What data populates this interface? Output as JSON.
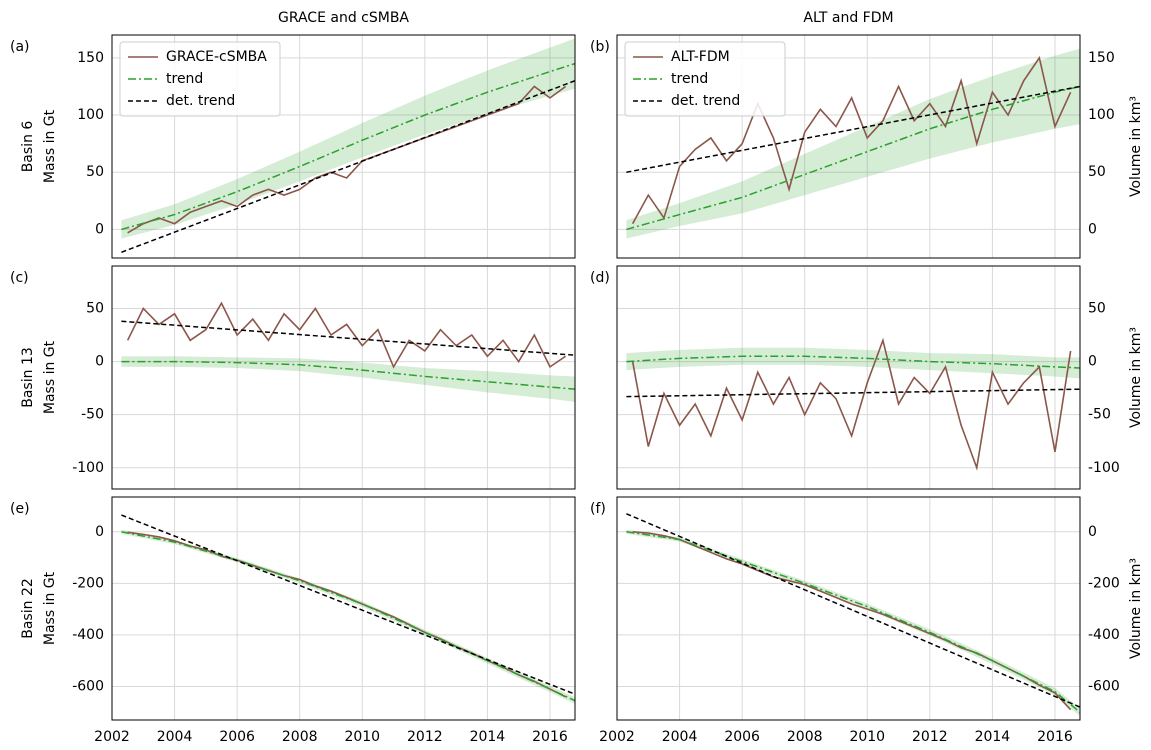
{
  "chart_data": [
    {
      "type": "line",
      "column_title": "GRACE and cSMBA",
      "panel_label": "(a)",
      "row_label": "Basin 6",
      "ylabel": "Mass in Gt",
      "xlim": [
        2002,
        2016.8
      ],
      "xticks": [
        2002,
        2004,
        2006,
        2008,
        2010,
        2012,
        2014,
        2016
      ],
      "ylim": [
        -25,
        170
      ],
      "yticks": [
        0,
        50,
        100,
        150
      ],
      "grid": true,
      "legend": "upper left",
      "series": [
        {
          "name": "GRACE-cSMBA",
          "color": "#8c564b",
          "style": "solid",
          "x": [
            2002.5,
            2003,
            2003.5,
            2004,
            2004.5,
            2005,
            2005.5,
            2006,
            2006.5,
            2007,
            2007.5,
            2008,
            2008.5,
            2009,
            2009.5,
            2010,
            2010.5,
            2011,
            2011.5,
            2012,
            2012.5,
            2013,
            2013.5,
            2014,
            2014.5,
            2015,
            2015.5,
            2016,
            2016.5
          ],
          "values": [
            -3,
            5,
            10,
            5,
            15,
            20,
            25,
            20,
            30,
            35,
            30,
            35,
            45,
            50,
            45,
            60,
            65,
            70,
            75,
            80,
            85,
            90,
            95,
            100,
            105,
            110,
            125,
            115,
            125
          ]
        },
        {
          "name": "trend",
          "color": "#2ca02c",
          "style": "dashdot",
          "x": [
            2002.3,
            2004,
            2006,
            2008,
            2010,
            2012,
            2014,
            2016,
            2016.8
          ],
          "values": [
            0,
            13,
            33,
            55,
            78,
            100,
            120,
            138,
            145
          ],
          "band_lower": [
            -8,
            4,
            22,
            42,
            63,
            83,
            101,
            117,
            123
          ],
          "band_upper": [
            8,
            22,
            44,
            68,
            93,
            117,
            139,
            159,
            167
          ]
        },
        {
          "name": "det. trend",
          "color": "#000000",
          "style": "dashed",
          "x": [
            2002.3,
            2016.8
          ],
          "values": [
            -20,
            130
          ]
        }
      ]
    },
    {
      "type": "line",
      "column_title": "ALT and FDM",
      "panel_label": "(b)",
      "ylabel": "Volume in km³",
      "xlim": [
        2002,
        2016.8
      ],
      "xticks": [
        2002,
        2004,
        2006,
        2008,
        2010,
        2012,
        2014,
        2016
      ],
      "ylim": [
        -25,
        170
      ],
      "yticks": [
        0,
        50,
        100,
        150
      ],
      "grid": true,
      "legend": "upper left",
      "series": [
        {
          "name": "ALT-FDM",
          "color": "#8c564b",
          "style": "solid",
          "x": [
            2002.5,
            2003,
            2003.5,
            2004,
            2004.5,
            2005,
            2005.5,
            2006,
            2006.5,
            2007,
            2007.5,
            2008,
            2008.5,
            2009,
            2009.5,
            2010,
            2010.5,
            2011,
            2011.5,
            2012,
            2012.5,
            2013,
            2013.5,
            2014,
            2014.5,
            2015,
            2015.5,
            2016,
            2016.5
          ],
          "values": [
            5,
            30,
            10,
            55,
            70,
            80,
            60,
            75,
            110,
            80,
            35,
            85,
            105,
            90,
            115,
            80,
            95,
            125,
            95,
            110,
            90,
            130,
            75,
            120,
            100,
            130,
            150,
            90,
            120
          ]
        },
        {
          "name": "trend",
          "color": "#2ca02c",
          "style": "dashdot",
          "x": [
            2002.3,
            2004,
            2006,
            2008,
            2010,
            2012,
            2014,
            2016,
            2016.8
          ],
          "values": [
            0,
            13,
            28,
            48,
            68,
            88,
            105,
            120,
            125
          ],
          "band_lower": [
            -8,
            3,
            14,
            30,
            46,
            62,
            76,
            88,
            92
          ],
          "band_upper": [
            8,
            23,
            42,
            66,
            90,
            114,
            134,
            152,
            158
          ]
        },
        {
          "name": "det. trend",
          "color": "#000000",
          "style": "dashed",
          "x": [
            2002.3,
            2016.8
          ],
          "values": [
            50,
            125
          ]
        }
      ]
    },
    {
      "type": "line",
      "panel_label": "(c)",
      "row_label": "Basin 13",
      "ylabel": "Mass in Gt",
      "xlim": [
        2002,
        2016.8
      ],
      "xticks": [
        2002,
        2004,
        2006,
        2008,
        2010,
        2012,
        2014,
        2016
      ],
      "ylim": [
        -120,
        90
      ],
      "yticks": [
        -100,
        -50,
        0,
        50
      ],
      "grid": true,
      "series": [
        {
          "color": "#8c564b",
          "style": "solid",
          "x": [
            2002.5,
            2003,
            2003.5,
            2004,
            2004.5,
            2005,
            2005.5,
            2006,
            2006.5,
            2007,
            2007.5,
            2008,
            2008.5,
            2009,
            2009.5,
            2010,
            2010.5,
            2011,
            2011.5,
            2012,
            2012.5,
            2013,
            2013.5,
            2014,
            2014.5,
            2015,
            2015.5,
            2016,
            2016.5
          ],
          "values": [
            20,
            50,
            35,
            45,
            20,
            30,
            55,
            25,
            40,
            20,
            45,
            30,
            50,
            25,
            35,
            15,
            30,
            -5,
            20,
            10,
            30,
            15,
            25,
            5,
            20,
            0,
            25,
            -5,
            5
          ]
        },
        {
          "color": "#2ca02c",
          "style": "dashdot",
          "x": [
            2002.3,
            2004,
            2006,
            2008,
            2010,
            2012,
            2014,
            2016,
            2016.8
          ],
          "values": [
            0,
            0,
            -1,
            -3,
            -8,
            -14,
            -19,
            -24,
            -26
          ],
          "band_lower": [
            -5,
            -5,
            -6,
            -9,
            -15,
            -22,
            -29,
            -35,
            -38
          ],
          "band_upper": [
            5,
            5,
            4,
            3,
            -1,
            -6,
            -9,
            -13,
            -14
          ]
        },
        {
          "color": "#000000",
          "style": "dashed",
          "x": [
            2002.3,
            2016.8
          ],
          "values": [
            38,
            6
          ]
        }
      ]
    },
    {
      "type": "line",
      "panel_label": "(d)",
      "ylabel": "Volume in km³",
      "xlim": [
        2002,
        2016.8
      ],
      "xticks": [
        2002,
        2004,
        2006,
        2008,
        2010,
        2012,
        2014,
        2016
      ],
      "ylim": [
        -120,
        90
      ],
      "yticks": [
        -100,
        -50,
        0,
        50
      ],
      "grid": true,
      "series": [
        {
          "color": "#8c564b",
          "style": "solid",
          "x": [
            2002.5,
            2003,
            2003.5,
            2004,
            2004.5,
            2005,
            2005.5,
            2006,
            2006.5,
            2007,
            2007.5,
            2008,
            2008.5,
            2009,
            2009.5,
            2010,
            2010.5,
            2011,
            2011.5,
            2012,
            2012.5,
            2013,
            2013.5,
            2014,
            2014.5,
            2015,
            2015.5,
            2016,
            2016.5
          ],
          "values": [
            0,
            -80,
            -30,
            -60,
            -40,
            -70,
            -25,
            -55,
            -10,
            -40,
            -15,
            -50,
            -20,
            -35,
            -70,
            -20,
            20,
            -40,
            -15,
            -30,
            -5,
            -60,
            -100,
            -10,
            -40,
            -20,
            -5,
            -85,
            10
          ]
        },
        {
          "color": "#2ca02c",
          "style": "dashdot",
          "x": [
            2002.3,
            2004,
            2006,
            2008,
            2010,
            2012,
            2014,
            2016,
            2016.8
          ],
          "values": [
            0,
            3,
            5,
            5,
            3,
            0,
            -2,
            -5,
            -6
          ],
          "band_lower": [
            -8,
            -5,
            -3,
            -3,
            -5,
            -8,
            -11,
            -14,
            -16
          ],
          "band_upper": [
            8,
            11,
            13,
            13,
            11,
            8,
            7,
            4,
            4
          ]
        },
        {
          "color": "#000000",
          "style": "dashed",
          "x": [
            2002.3,
            2016.8
          ],
          "values": [
            -33,
            -26
          ]
        }
      ]
    },
    {
      "type": "line",
      "panel_label": "(e)",
      "row_label": "Basin 22",
      "ylabel": "Mass in Gt",
      "xlim": [
        2002,
        2016.8
      ],
      "xticks": [
        2002,
        2004,
        2006,
        2008,
        2010,
        2012,
        2014,
        2016
      ],
      "ylim": [
        -730,
        135
      ],
      "yticks": [
        -600,
        -400,
        -200,
        0
      ],
      "grid": true,
      "series": [
        {
          "color": "#8c564b",
          "style": "solid",
          "x": [
            2002.5,
            2003,
            2003.5,
            2004,
            2004.5,
            2005,
            2005.5,
            2006,
            2006.5,
            2007,
            2007.5,
            2008,
            2008.5,
            2009,
            2009.5,
            2010,
            2010.5,
            2011,
            2011.5,
            2012,
            2012.5,
            2013,
            2013.5,
            2014,
            2014.5,
            2015,
            2015.5,
            2016,
            2016.5
          ],
          "values": [
            -2,
            -10,
            -20,
            -35,
            -55,
            -70,
            -95,
            -110,
            -130,
            -150,
            -170,
            -185,
            -210,
            -230,
            -255,
            -280,
            -305,
            -330,
            -360,
            -390,
            -415,
            -445,
            -470,
            -500,
            -525,
            -555,
            -580,
            -610,
            -640
          ]
        },
        {
          "color": "#2ca02c",
          "style": "dashdot",
          "x": [
            2002.3,
            2004,
            2006,
            2008,
            2010,
            2012,
            2014,
            2016,
            2016.8
          ],
          "values": [
            0,
            -40,
            -110,
            -190,
            -280,
            -390,
            -500,
            -610,
            -655
          ],
          "band_lower": [
            -8,
            -48,
            -118,
            -199,
            -290,
            -400,
            -511,
            -622,
            -668
          ],
          "band_upper": [
            8,
            -32,
            -102,
            -181,
            -270,
            -380,
            -489,
            -598,
            -642
          ]
        },
        {
          "color": "#000000",
          "style": "dashed",
          "x": [
            2002.3,
            2016.8
          ],
          "values": [
            65,
            -630
          ]
        }
      ]
    },
    {
      "type": "line",
      "panel_label": "(f)",
      "ylabel": "Volume in km³",
      "xlim": [
        2002,
        2016.8
      ],
      "xticks": [
        2002,
        2004,
        2006,
        2008,
        2010,
        2012,
        2014,
        2016
      ],
      "ylim": [
        -730,
        135
      ],
      "yticks": [
        -600,
        -400,
        -200,
        0
      ],
      "grid": true,
      "series": [
        {
          "color": "#8c564b",
          "style": "solid",
          "x": [
            2002.5,
            2003,
            2003.5,
            2004,
            2004.5,
            2005,
            2005.5,
            2006,
            2006.5,
            2007,
            2007.5,
            2008,
            2008.5,
            2009,
            2009.5,
            2010,
            2010.5,
            2011,
            2011.5,
            2012,
            2012.5,
            2013,
            2013.5,
            2014,
            2014.5,
            2015,
            2015.5,
            2016,
            2016.5
          ],
          "values": [
            0,
            -5,
            -15,
            -30,
            -55,
            -80,
            -105,
            -125,
            -150,
            -175,
            -190,
            -205,
            -230,
            -255,
            -280,
            -300,
            -320,
            -345,
            -370,
            -395,
            -420,
            -450,
            -470,
            -500,
            -530,
            -560,
            -595,
            -625,
            -690
          ]
        },
        {
          "color": "#2ca02c",
          "style": "dashdot",
          "x": [
            2002.3,
            2004,
            2006,
            2008,
            2010,
            2012,
            2014,
            2016,
            2016.8
          ],
          "values": [
            0,
            -30,
            -115,
            -200,
            -290,
            -390,
            -500,
            -620,
            -700
          ],
          "band_lower": [
            -8,
            -38,
            -124,
            -210,
            -301,
            -402,
            -513,
            -634,
            -715
          ],
          "band_upper": [
            8,
            -22,
            -106,
            -190,
            -279,
            -378,
            -487,
            -606,
            -685
          ]
        },
        {
          "color": "#000000",
          "style": "dashed",
          "x": [
            2002.3,
            2016.8
          ],
          "values": [
            70,
            -680
          ]
        }
      ]
    }
  ]
}
